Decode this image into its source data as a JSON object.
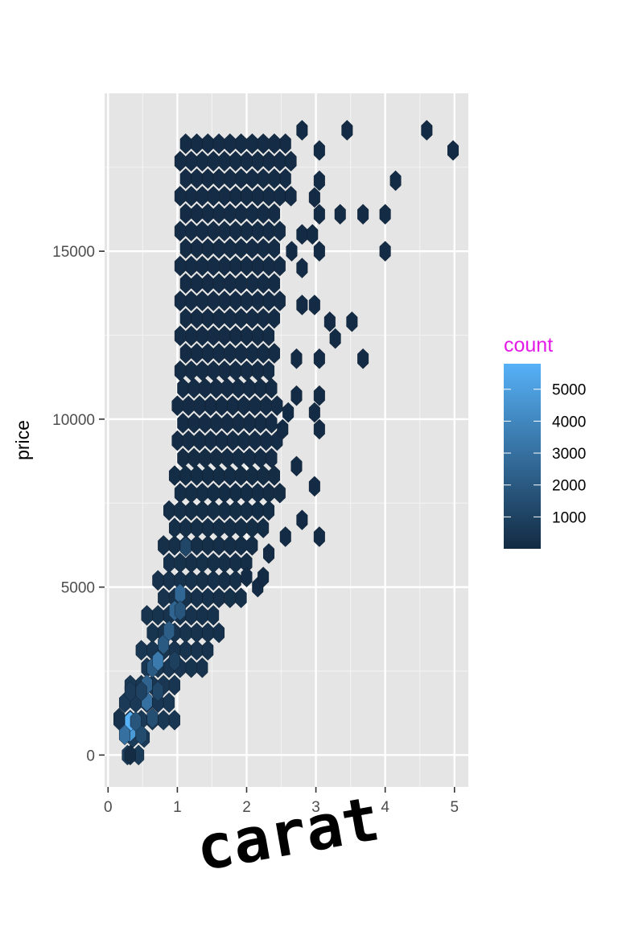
{
  "chart_data": {
    "type": "hexbin",
    "xlabel": "carat",
    "ylabel": "price",
    "xlim": [
      -0.05,
      5.2
    ],
    "ylim": [
      -950,
      19700
    ],
    "x_ticks": [
      0,
      1,
      2,
      3,
      4,
      5
    ],
    "x_tick_labels": [
      "0",
      "1",
      "2",
      "3",
      "4",
      "5"
    ],
    "y_ticks": [
      0,
      5000,
      10000,
      15000
    ],
    "y_tick_labels": [
      "0",
      "5000",
      "10000",
      "15000"
    ],
    "grid": true,
    "panel_background": "#e5e5e5",
    "legend": {
      "title": "count",
      "title_color": "#e41ae8",
      "position": "right",
      "breaks": [
        1000,
        2000,
        3000,
        4000,
        5000
      ],
      "labels": [
        "1000",
        "2000",
        "3000",
        "4000",
        "5000"
      ],
      "min": 1,
      "max": 5800,
      "low_color": "#132b43",
      "high_color": "#56b1f7"
    },
    "bins": {
      "binwidth": [
        0.16,
        520
      ],
      "points": [
        {
          "x": 0.32,
          "y": 0,
          "count": 80
        },
        {
          "x": 0.32,
          "y": 700,
          "count": 4800
        },
        {
          "x": 0.32,
          "y": 1000,
          "count": 5800
        },
        {
          "x": 0.24,
          "y": 600,
          "count": 3000
        },
        {
          "x": 0.16,
          "y": 1100,
          "count": 300
        },
        {
          "x": 0.48,
          "y": 600,
          "count": 1400
        },
        {
          "x": 0.4,
          "y": 1000,
          "count": 1800
        },
        {
          "x": 0.56,
          "y": 1600,
          "count": 3000
        },
        {
          "x": 0.56,
          "y": 2100,
          "count": 2400
        },
        {
          "x": 0.64,
          "y": 2600,
          "count": 2000
        },
        {
          "x": 0.72,
          "y": 2800,
          "count": 3400
        },
        {
          "x": 0.8,
          "y": 3300,
          "count": 2000
        },
        {
          "x": 0.88,
          "y": 3700,
          "count": 2200
        },
        {
          "x": 0.96,
          "y": 4300,
          "count": 2500
        },
        {
          "x": 1.04,
          "y": 4800,
          "count": 2600
        },
        {
          "x": 1.04,
          "y": 4300,
          "count": 1800
        },
        {
          "x": 1.12,
          "y": 6200,
          "count": 1200
        },
        {
          "x": 0.48,
          "y": 1900,
          "count": 1000
        },
        {
          "x": 0.64,
          "y": 1100,
          "count": 1500
        },
        {
          "x": 0.72,
          "y": 1900,
          "count": 1200
        },
        {
          "x": 0.96,
          "y": 2800,
          "count": 900
        },
        {
          "x": 0.32,
          "y": 1900,
          "count": 700
        }
      ]
    }
  }
}
